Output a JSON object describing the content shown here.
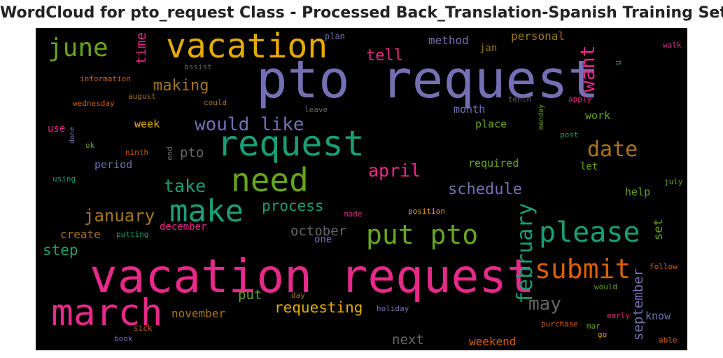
{
  "title": "WordCloud for pto_request Class - Processed Back_Translation-Spanish Training Set",
  "cloud_background": "#000000",
  "words": [
    {
      "id": "pto-request",
      "text": "pto request",
      "color": "#7570b3"
    },
    {
      "id": "vacation-request",
      "text": "vacation request",
      "color": "#e7298a"
    },
    {
      "id": "request",
      "text": "request",
      "color": "#1b9e77"
    },
    {
      "id": "vacation",
      "text": "vacation",
      "color": "#e6ab02"
    },
    {
      "id": "march",
      "text": "march",
      "color": "#e7298a"
    },
    {
      "id": "need",
      "text": "need",
      "color": "#66a61e"
    },
    {
      "id": "make",
      "text": "make",
      "color": "#1b9e77"
    },
    {
      "id": "please",
      "text": "please",
      "color": "#1b9e77"
    },
    {
      "id": "put-pto",
      "text": "put pto",
      "color": "#66a61e"
    },
    {
      "id": "june",
      "text": "june",
      "color": "#66a61e"
    },
    {
      "id": "submit",
      "text": "submit",
      "color": "#d95f02"
    },
    {
      "id": "date",
      "text": "date",
      "color": "#a6761d"
    },
    {
      "id": "february",
      "text": "february",
      "color": "#1b9e77"
    },
    {
      "id": "would-like",
      "text": "would like",
      "color": "#7570b3"
    },
    {
      "id": "want",
      "text": "want",
      "color": "#e7298a"
    },
    {
      "id": "may",
      "text": "may",
      "color": "#666666"
    },
    {
      "id": "january",
      "text": "january",
      "color": "#a6761d"
    },
    {
      "id": "take",
      "text": "take",
      "color": "#1b9e77"
    },
    {
      "id": "april",
      "text": "april",
      "color": "#e7298a"
    },
    {
      "id": "schedule",
      "text": "schedule",
      "color": "#7570b3"
    },
    {
      "id": "making",
      "text": "making",
      "color": "#a6761d"
    },
    {
      "id": "tell",
      "text": "tell",
      "color": "#e7298a"
    },
    {
      "id": "process",
      "text": "process",
      "color": "#1b9e77"
    },
    {
      "id": "requesting",
      "text": "requesting",
      "color": "#e6ab02"
    },
    {
      "id": "next",
      "text": "next",
      "color": "#666666"
    },
    {
      "id": "september",
      "text": "september",
      "color": "#7570b3"
    },
    {
      "id": "october",
      "text": "october",
      "color": "#666666"
    },
    {
      "id": "pto",
      "text": "pto",
      "color": "#666666"
    },
    {
      "id": "step",
      "text": "step",
      "color": "#1b9e77"
    },
    {
      "id": "time",
      "text": "time",
      "color": "#e7298a"
    },
    {
      "id": "put",
      "text": "put",
      "color": "#66a61e"
    },
    {
      "id": "set",
      "text": "set",
      "color": "#66a61e"
    },
    {
      "id": "method",
      "text": "method",
      "color": "#7570b3"
    },
    {
      "id": "weekend",
      "text": "weekend",
      "color": "#d95f02"
    },
    {
      "id": "create",
      "text": "create",
      "color": "#a6761d"
    },
    {
      "id": "november",
      "text": "november",
      "color": "#a6761d"
    },
    {
      "id": "personal",
      "text": "personal",
      "color": "#a6761d"
    },
    {
      "id": "month",
      "text": "month",
      "color": "#7570b3"
    },
    {
      "id": "place",
      "text": "place",
      "color": "#66a61e"
    },
    {
      "id": "required",
      "text": "required",
      "color": "#66a61e"
    },
    {
      "id": "work",
      "text": "work",
      "color": "#66a61e"
    },
    {
      "id": "period",
      "text": "period",
      "color": "#7570b3"
    },
    {
      "id": "december",
      "text": "december",
      "color": "#e7298a"
    },
    {
      "id": "week",
      "text": "week",
      "color": "#e6ab02"
    },
    {
      "id": "help",
      "text": "help",
      "color": "#66a61e"
    },
    {
      "id": "know",
      "text": "know",
      "color": "#7570b3"
    },
    {
      "id": "jan",
      "text": "jan",
      "color": "#a6761d"
    },
    {
      "id": "use",
      "text": "use",
      "color": "#e7298a"
    },
    {
      "id": "let",
      "text": "let",
      "color": "#66a61e"
    },
    {
      "id": "one",
      "text": "one",
      "color": "#7570b3"
    },
    {
      "id": "u",
      "text": "u",
      "color": "#1b9e77"
    },
    {
      "id": "plan",
      "text": "plan",
      "color": "#7570b3"
    },
    {
      "id": "walk",
      "text": "walk",
      "color": "#e7298a"
    },
    {
      "id": "assist",
      "text": "assist",
      "color": "#666666"
    },
    {
      "id": "information",
      "text": "information",
      "color": "#d95f02"
    },
    {
      "id": "august",
      "text": "august",
      "color": "#a6761d"
    },
    {
      "id": "could",
      "text": "could",
      "color": "#a6761d"
    },
    {
      "id": "wednesday",
      "text": "wednesday",
      "color": "#d95f02"
    },
    {
      "id": "leave",
      "text": "leave",
      "color": "#666666"
    },
    {
      "id": "tenth",
      "text": "tenth",
      "color": "#666666"
    },
    {
      "id": "apply",
      "text": "apply",
      "color": "#e7298a"
    },
    {
      "id": "monday",
      "text": "monday",
      "color": "#66a61e"
    },
    {
      "id": "post",
      "text": "post",
      "color": "#1b9e77"
    },
    {
      "id": "done",
      "text": "done",
      "color": "#7570b3"
    },
    {
      "id": "ok",
      "text": "ok",
      "color": "#66a61e"
    },
    {
      "id": "ninth",
      "text": "ninth",
      "color": "#d95f02"
    },
    {
      "id": "end",
      "text": "end",
      "color": "#666666"
    },
    {
      "id": "using",
      "text": "using",
      "color": "#1b9e77"
    },
    {
      "id": "july",
      "text": "july",
      "color": "#66a61e"
    },
    {
      "id": "made",
      "text": "made",
      "color": "#e7298a"
    },
    {
      "id": "position",
      "text": "position",
      "color": "#e6ab02"
    },
    {
      "id": "putting",
      "text": "putting",
      "color": "#1b9e77"
    },
    {
      "id": "follow",
      "text": "follow",
      "color": "#d95f02"
    },
    {
      "id": "would",
      "text": "would",
      "color": "#66a61e"
    },
    {
      "id": "day",
      "text": "day",
      "color": "#a6761d"
    },
    {
      "id": "holiday",
      "text": "holiday",
      "color": "#7570b3"
    },
    {
      "id": "early",
      "text": "early",
      "color": "#e7298a"
    },
    {
      "id": "purchase",
      "text": "purchase",
      "color": "#d95f02"
    },
    {
      "id": "mar",
      "text": "mar",
      "color": "#66a61e"
    },
    {
      "id": "sick",
      "text": "sick",
      "color": "#d95f02"
    },
    {
      "id": "go",
      "text": "go",
      "color": "#e6ab02"
    },
    {
      "id": "book",
      "text": "book",
      "color": "#7570b3"
    },
    {
      "id": "able",
      "text": "able",
      "color": "#d95f02"
    }
  ]
}
